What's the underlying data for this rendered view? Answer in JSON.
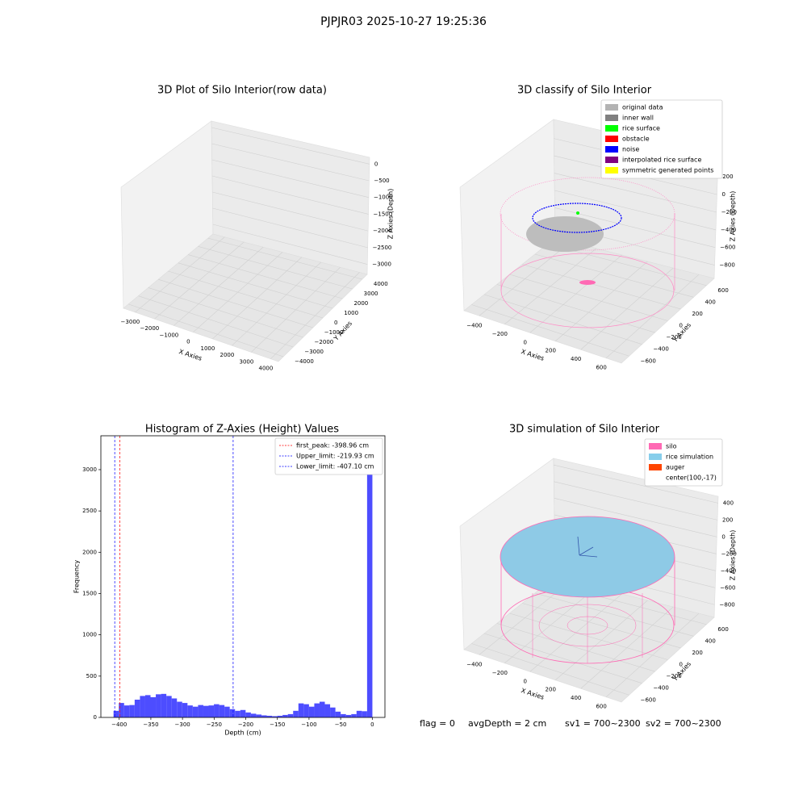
{
  "title": "PJPJR03 2025-10-27 19:25:36",
  "chart_data": [
    {
      "type": "scatter3d",
      "title": "3D Plot of Silo Interior(row data)",
      "xlabel": "X Axies",
      "ylabel": "Y Axies",
      "zlabel": "Z Axies (Depth)",
      "xlim": [
        -3600,
        4400
      ],
      "ylim": [
        -4500,
        4500
      ],
      "zlim": [
        -3300,
        200
      ],
      "xticks": [
        {
          "value": -3000,
          "label": "−3000"
        },
        {
          "value": -2000,
          "label": "−2000"
        },
        {
          "value": -1000,
          "label": "−1000"
        },
        0,
        1000,
        2000,
        3000,
        4000
      ],
      "yticks": [
        {
          "value": -4000,
          "label": "−4000"
        },
        {
          "value": -3000,
          "label": "−3000"
        },
        {
          "value": -2000,
          "label": "−2000"
        },
        {
          "value": -1000,
          "label": "−1000"
        },
        0,
        1000,
        2000,
        3000,
        4000
      ],
      "zticks": [
        0,
        {
          "value": -500,
          "label": "−500"
        },
        {
          "value": -1000,
          "label": "−1000"
        },
        {
          "value": -1500,
          "label": "−1500"
        },
        {
          "value": -2000,
          "label": "−2000"
        },
        {
          "value": -2500,
          "label": "−2500"
        },
        {
          "value": -3000,
          "label": "−3000"
        }
      ]
    },
    {
      "type": "3d",
      "title": "3D classify of Silo Interior",
      "xlabel": "X Axies",
      "ylabel": "Y Axies",
      "zlabel": "Z Axies (Depth)",
      "xlim": [
        -520,
        720
      ],
      "ylim": [
        -720,
        720
      ],
      "zlim": [
        -950,
        420
      ],
      "xticks": [
        {
          "value": -400,
          "label": "−400"
        },
        {
          "value": -200,
          "label": "−200"
        },
        0,
        200,
        400,
        600
      ],
      "yticks": [
        {
          "value": -600,
          "label": "−600"
        },
        {
          "value": -400,
          "label": "−400"
        },
        {
          "value": -200,
          "label": "−200"
        },
        0,
        200,
        400,
        600
      ],
      "zticks": [
        200,
        0,
        {
          "value": -200,
          "label": "−200"
        },
        {
          "value": -400,
          "label": "−400"
        },
        {
          "value": -600,
          "label": "−600"
        },
        {
          "value": -800,
          "label": "−800"
        }
      ],
      "legend": [
        {
          "name": "original data",
          "color": "#b3b3b3"
        },
        {
          "name": "inner wall",
          "color": "#808080"
        },
        {
          "name": "rice surface",
          "color": "#00ff00"
        },
        {
          "name": "obstacle",
          "color": "#ff0000"
        },
        {
          "name": "noise",
          "color": "#0000ff"
        },
        {
          "name": "interpolated rice surface",
          "color": "#800080"
        },
        {
          "name": "symmetric generated points",
          "color": "#ffff00"
        }
      ]
    },
    {
      "type": "histogram",
      "title": "Histogram of Z-Axies (Height) Values",
      "xlabel": "Depth (cm)",
      "ylabel": "Frequency",
      "color": "#4d4dff",
      "xlim": [
        -429,
        20
      ],
      "ylim": [
        0,
        3410
      ],
      "xticks": [
        {
          "value": -400,
          "label": "−400"
        },
        {
          "value": -350,
          "label": "−350"
        },
        {
          "value": -300,
          "label": "−300"
        },
        {
          "value": -250,
          "label": "−250"
        },
        {
          "value": -200,
          "label": "−200"
        },
        {
          "value": -150,
          "label": "−150"
        },
        {
          "value": -100,
          "label": "−100"
        },
        {
          "value": -50,
          "label": "−50"
        },
        0
      ],
      "yticks": [
        0,
        500,
        1000,
        1500,
        2000,
        2500,
        3000
      ],
      "bins": [
        -409,
        -400.65,
        -392.3,
        -383.95,
        -375.6,
        -367.25,
        -358.9,
        -350.55,
        -342.2,
        -333.85,
        -325.5,
        -317.15,
        -308.8,
        -300.45,
        -292.1,
        -283.75,
        -275.4,
        -267.05,
        -258.7,
        -250.35,
        -242,
        -233.65,
        -225.3,
        -216.95,
        -208.6,
        -200.25,
        -191.9,
        -183.55,
        -175.2,
        -166.85,
        -158.5,
        -150.15,
        -141.8,
        -133.45,
        -125.1,
        -116.75,
        -108.4,
        -100.05,
        -91.7,
        -83.35,
        -75,
        -66.65,
        -58.3,
        -49.95,
        -41.6,
        -33.25,
        -24.9,
        -16.55,
        -8.2,
        0.15
      ],
      "values": [
        80,
        175,
        145,
        150,
        215,
        260,
        270,
        245,
        280,
        285,
        260,
        230,
        190,
        175,
        145,
        130,
        150,
        140,
        145,
        160,
        150,
        130,
        100,
        80,
        90,
        60,
        45,
        35,
        25,
        20,
        15,
        20,
        30,
        40,
        80,
        170,
        160,
        130,
        170,
        190,
        160,
        120,
        70,
        40,
        30,
        40,
        80,
        75,
        3240
      ],
      "lines": [
        {
          "name": "first_peak: -398.96 cm",
          "value": -398.96,
          "color": "#ff0000"
        },
        {
          "name": "Upper_limit: -219.93 cm",
          "value": -219.93,
          "color": "#0000ff"
        },
        {
          "name": "Lower_limit: -407.10 cm",
          "value": -407.1,
          "color": "#0000ff"
        }
      ]
    },
    {
      "type": "3d",
      "title": "3D simulation of Silo Interior",
      "xlabel": "X Axies",
      "ylabel": "Y Axies",
      "zlabel": "Z Axies (Depth)",
      "xlim": [
        -520,
        720
      ],
      "ylim": [
        -720,
        720
      ],
      "zlim": [
        -950,
        480
      ],
      "xticks": [
        {
          "value": -400,
          "label": "−400"
        },
        {
          "value": -200,
          "label": "−200"
        },
        0,
        200,
        400,
        600
      ],
      "yticks": [
        {
          "value": -600,
          "label": "−600"
        },
        {
          "value": -400,
          "label": "−400"
        },
        {
          "value": -200,
          "label": "−200"
        },
        0,
        200,
        400,
        600
      ],
      "zticks": [
        400,
        200,
        0,
        {
          "value": -200,
          "label": "−200"
        },
        {
          "value": -400,
          "label": "−400"
        },
        {
          "value": -600,
          "label": "−600"
        },
        {
          "value": -800,
          "label": "−800"
        }
      ],
      "legend": [
        {
          "name": "silo",
          "color": "#ff69b4"
        },
        {
          "name": "rice simulation",
          "color": "#87ceeb"
        },
        {
          "name": "auger",
          "color": "#ff4500"
        },
        {
          "name": "center(100,-17)"
        }
      ]
    }
  ],
  "footer": [
    "flag = 0",
    "avgDepth = 2 cm",
    "sv1 = 700~2300",
    "sv2 = 700~2300"
  ]
}
